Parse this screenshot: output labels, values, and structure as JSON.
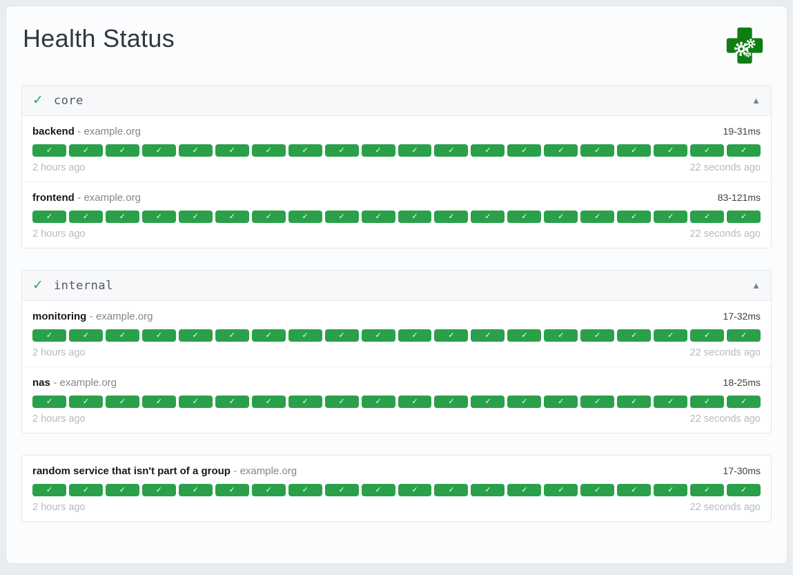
{
  "header": {
    "title": "Health Status",
    "logo": "health-cross-gears-icon"
  },
  "icons": {
    "check": "✓",
    "collapse": "▲",
    "segment_check": "✓"
  },
  "colors": {
    "segment_green": "#2ba04a",
    "status_check_green": "#2aa552",
    "logo_green": "#0e7d12",
    "timestamp_gray": "#b4bbc2"
  },
  "groups": [
    {
      "name": "core",
      "healthy": true,
      "services": [
        {
          "name": "backend",
          "separator": "-",
          "host": "example.org",
          "response_range": "19-31ms",
          "segments": 20,
          "oldest": "2 hours ago",
          "newest": "22 seconds ago"
        },
        {
          "name": "frontend",
          "separator": "-",
          "host": "example.org",
          "response_range": "83-121ms",
          "segments": 20,
          "oldest": "2 hours ago",
          "newest": "22 seconds ago"
        }
      ]
    },
    {
      "name": "internal",
      "healthy": true,
      "services": [
        {
          "name": "monitoring",
          "separator": "-",
          "host": "example.org",
          "response_range": "17-32ms",
          "segments": 20,
          "oldest": "2 hours ago",
          "newest": "22 seconds ago"
        },
        {
          "name": "nas",
          "separator": "-",
          "host": "example.org",
          "response_range": "18-25ms",
          "segments": 20,
          "oldest": "2 hours ago",
          "newest": "22 seconds ago"
        }
      ]
    },
    {
      "name": null,
      "healthy": true,
      "services": [
        {
          "name": "random service that isn't part of a group",
          "separator": "-",
          "host": "example.org",
          "response_range": "17-30ms",
          "segments": 20,
          "oldest": "2 hours ago",
          "newest": "22 seconds ago"
        }
      ]
    }
  ]
}
